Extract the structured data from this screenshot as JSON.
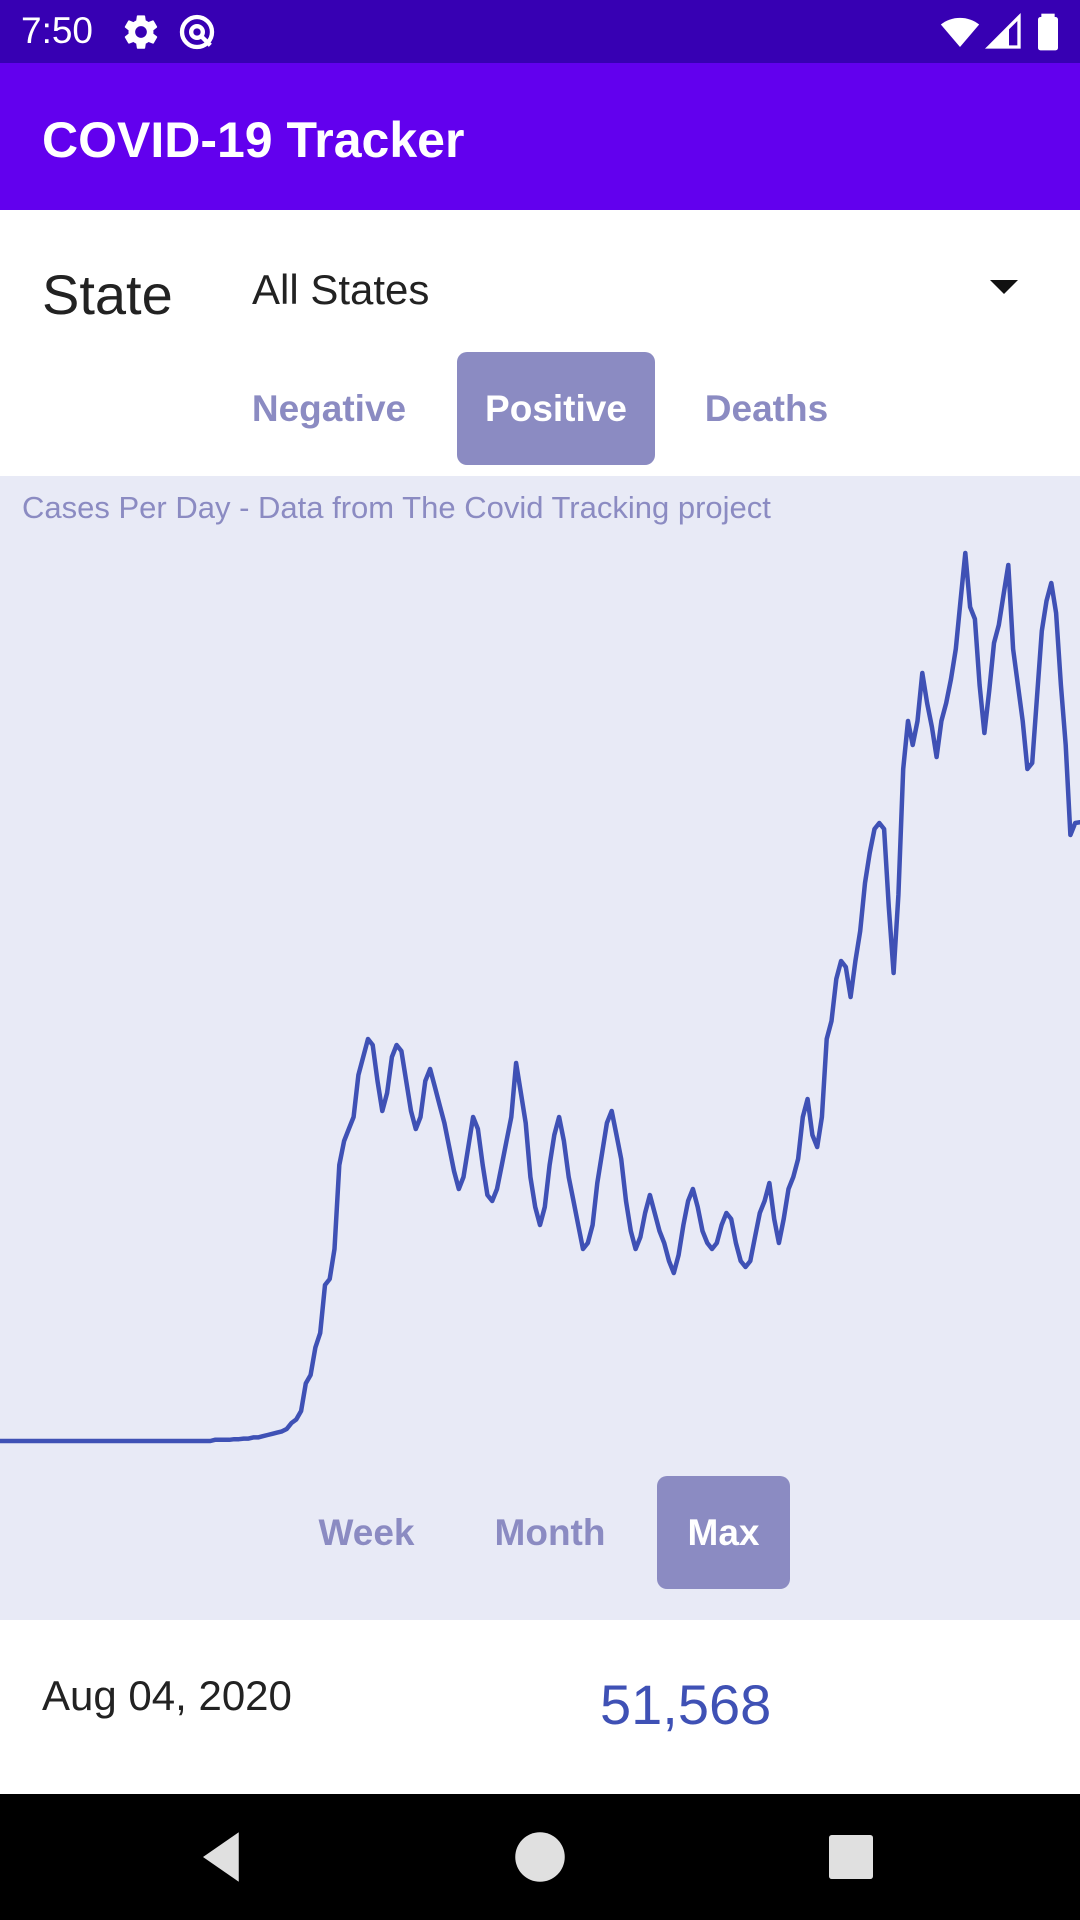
{
  "status_bar": {
    "time": "7:50",
    "left_icons": [
      "gear-icon",
      "at-sign-icon"
    ],
    "right_icons": [
      "wifi-icon",
      "cell-signal-icon",
      "battery-icon"
    ]
  },
  "app_bar": {
    "title": "COVID-19 Tracker"
  },
  "state_selector": {
    "label": "State",
    "selected": "All States"
  },
  "metric_tabs": [
    {
      "label": "Negative",
      "active": false
    },
    {
      "label": "Positive",
      "active": true
    },
    {
      "label": "Deaths",
      "active": false
    }
  ],
  "chart": {
    "caption": "Cases Per Day - Data from The Covid Tracking project"
  },
  "range_tabs": [
    {
      "label": "Week",
      "active": false
    },
    {
      "label": "Month",
      "active": false
    },
    {
      "label": "Max",
      "active": true
    }
  ],
  "selection": {
    "date": "Aug 04, 2020",
    "value": "51,568"
  },
  "colors": {
    "status_bar": "#3700b3",
    "app_bar": "#6200ee",
    "accent_muted": "#8b8bc2",
    "chart_background": "#e8eaf6",
    "series_line": "#3f51b5"
  },
  "chart_data": {
    "type": "line",
    "title": "Cases Per Day - Data from The Covid Tracking project",
    "xlabel": "",
    "ylabel": "",
    "grid": false,
    "axes_visible": false,
    "series": [
      {
        "values": [
          0,
          0,
          0,
          0,
          0,
          0,
          0,
          0,
          0,
          0,
          0,
          0,
          0,
          0,
          0,
          0,
          0,
          0,
          0,
          0,
          0,
          0,
          0,
          0,
          0,
          0,
          0,
          0,
          0,
          0,
          0,
          0,
          0,
          0,
          0,
          0,
          0,
          0,
          0,
          0,
          0,
          0,
          0,
          0,
          0,
          100,
          100,
          100,
          100,
          150,
          150,
          200,
          200,
          300,
          300,
          400,
          500,
          600,
          700,
          800,
          1000,
          1500,
          1800,
          2500,
          4800,
          5500,
          7800,
          9000,
          13000,
          13500,
          16000,
          23000,
          25000,
          26000,
          27000,
          30500,
          32000,
          33500,
          33000,
          30000,
          27500,
          29000,
          32000,
          33000,
          32500,
          30000,
          27500,
          26000,
          27000,
          30000,
          31000,
          29500,
          28000,
          26500,
          24500,
          22500,
          21000,
          22000,
          24500,
          27000,
          26000,
          23000,
          20500,
          20000,
          21000,
          23000,
          25000,
          27000,
          31500,
          29000,
          26500,
          22000,
          19500,
          18000,
          19500,
          23000,
          25500,
          27000,
          25000,
          22000,
          20000,
          18000,
          16000,
          16500,
          18000,
          21500,
          24000,
          26500,
          27500,
          25500,
          23500,
          20000,
          17500,
          16000,
          17000,
          19000,
          20500,
          19000,
          17500,
          16500,
          15000,
          14000,
          15500,
          18000,
          20000,
          21000,
          19500,
          17500,
          16500,
          16000,
          16500,
          18000,
          19000,
          18500,
          16500,
          15000,
          14500,
          15000,
          17000,
          19000,
          20000,
          21500,
          18500,
          16500,
          18500,
          21000,
          22000,
          23500,
          27000,
          28500,
          25500,
          24500,
          27000,
          33500,
          35000,
          38500,
          40000,
          39500,
          37000,
          40000,
          42500,
          46500,
          49000,
          51000,
          51500,
          51000,
          44500,
          39000,
          45500,
          56000,
          60000,
          58000,
          60000,
          64000,
          61500,
          59500,
          57000,
          60000,
          61500,
          63500,
          66000,
          70000,
          74000,
          69500,
          68500,
          63000,
          59000,
          62500,
          66500,
          68000,
          70500,
          73000,
          66000,
          63000,
          60000,
          56000,
          56500,
          62000,
          67500,
          70000,
          71500,
          69000,
          63000,
          58000,
          50500,
          51500,
          51568
        ]
      }
    ],
    "x_range": [
      "2020-01-22",
      "2020-08-04"
    ],
    "ylim": [
      0,
      80000
    ]
  }
}
